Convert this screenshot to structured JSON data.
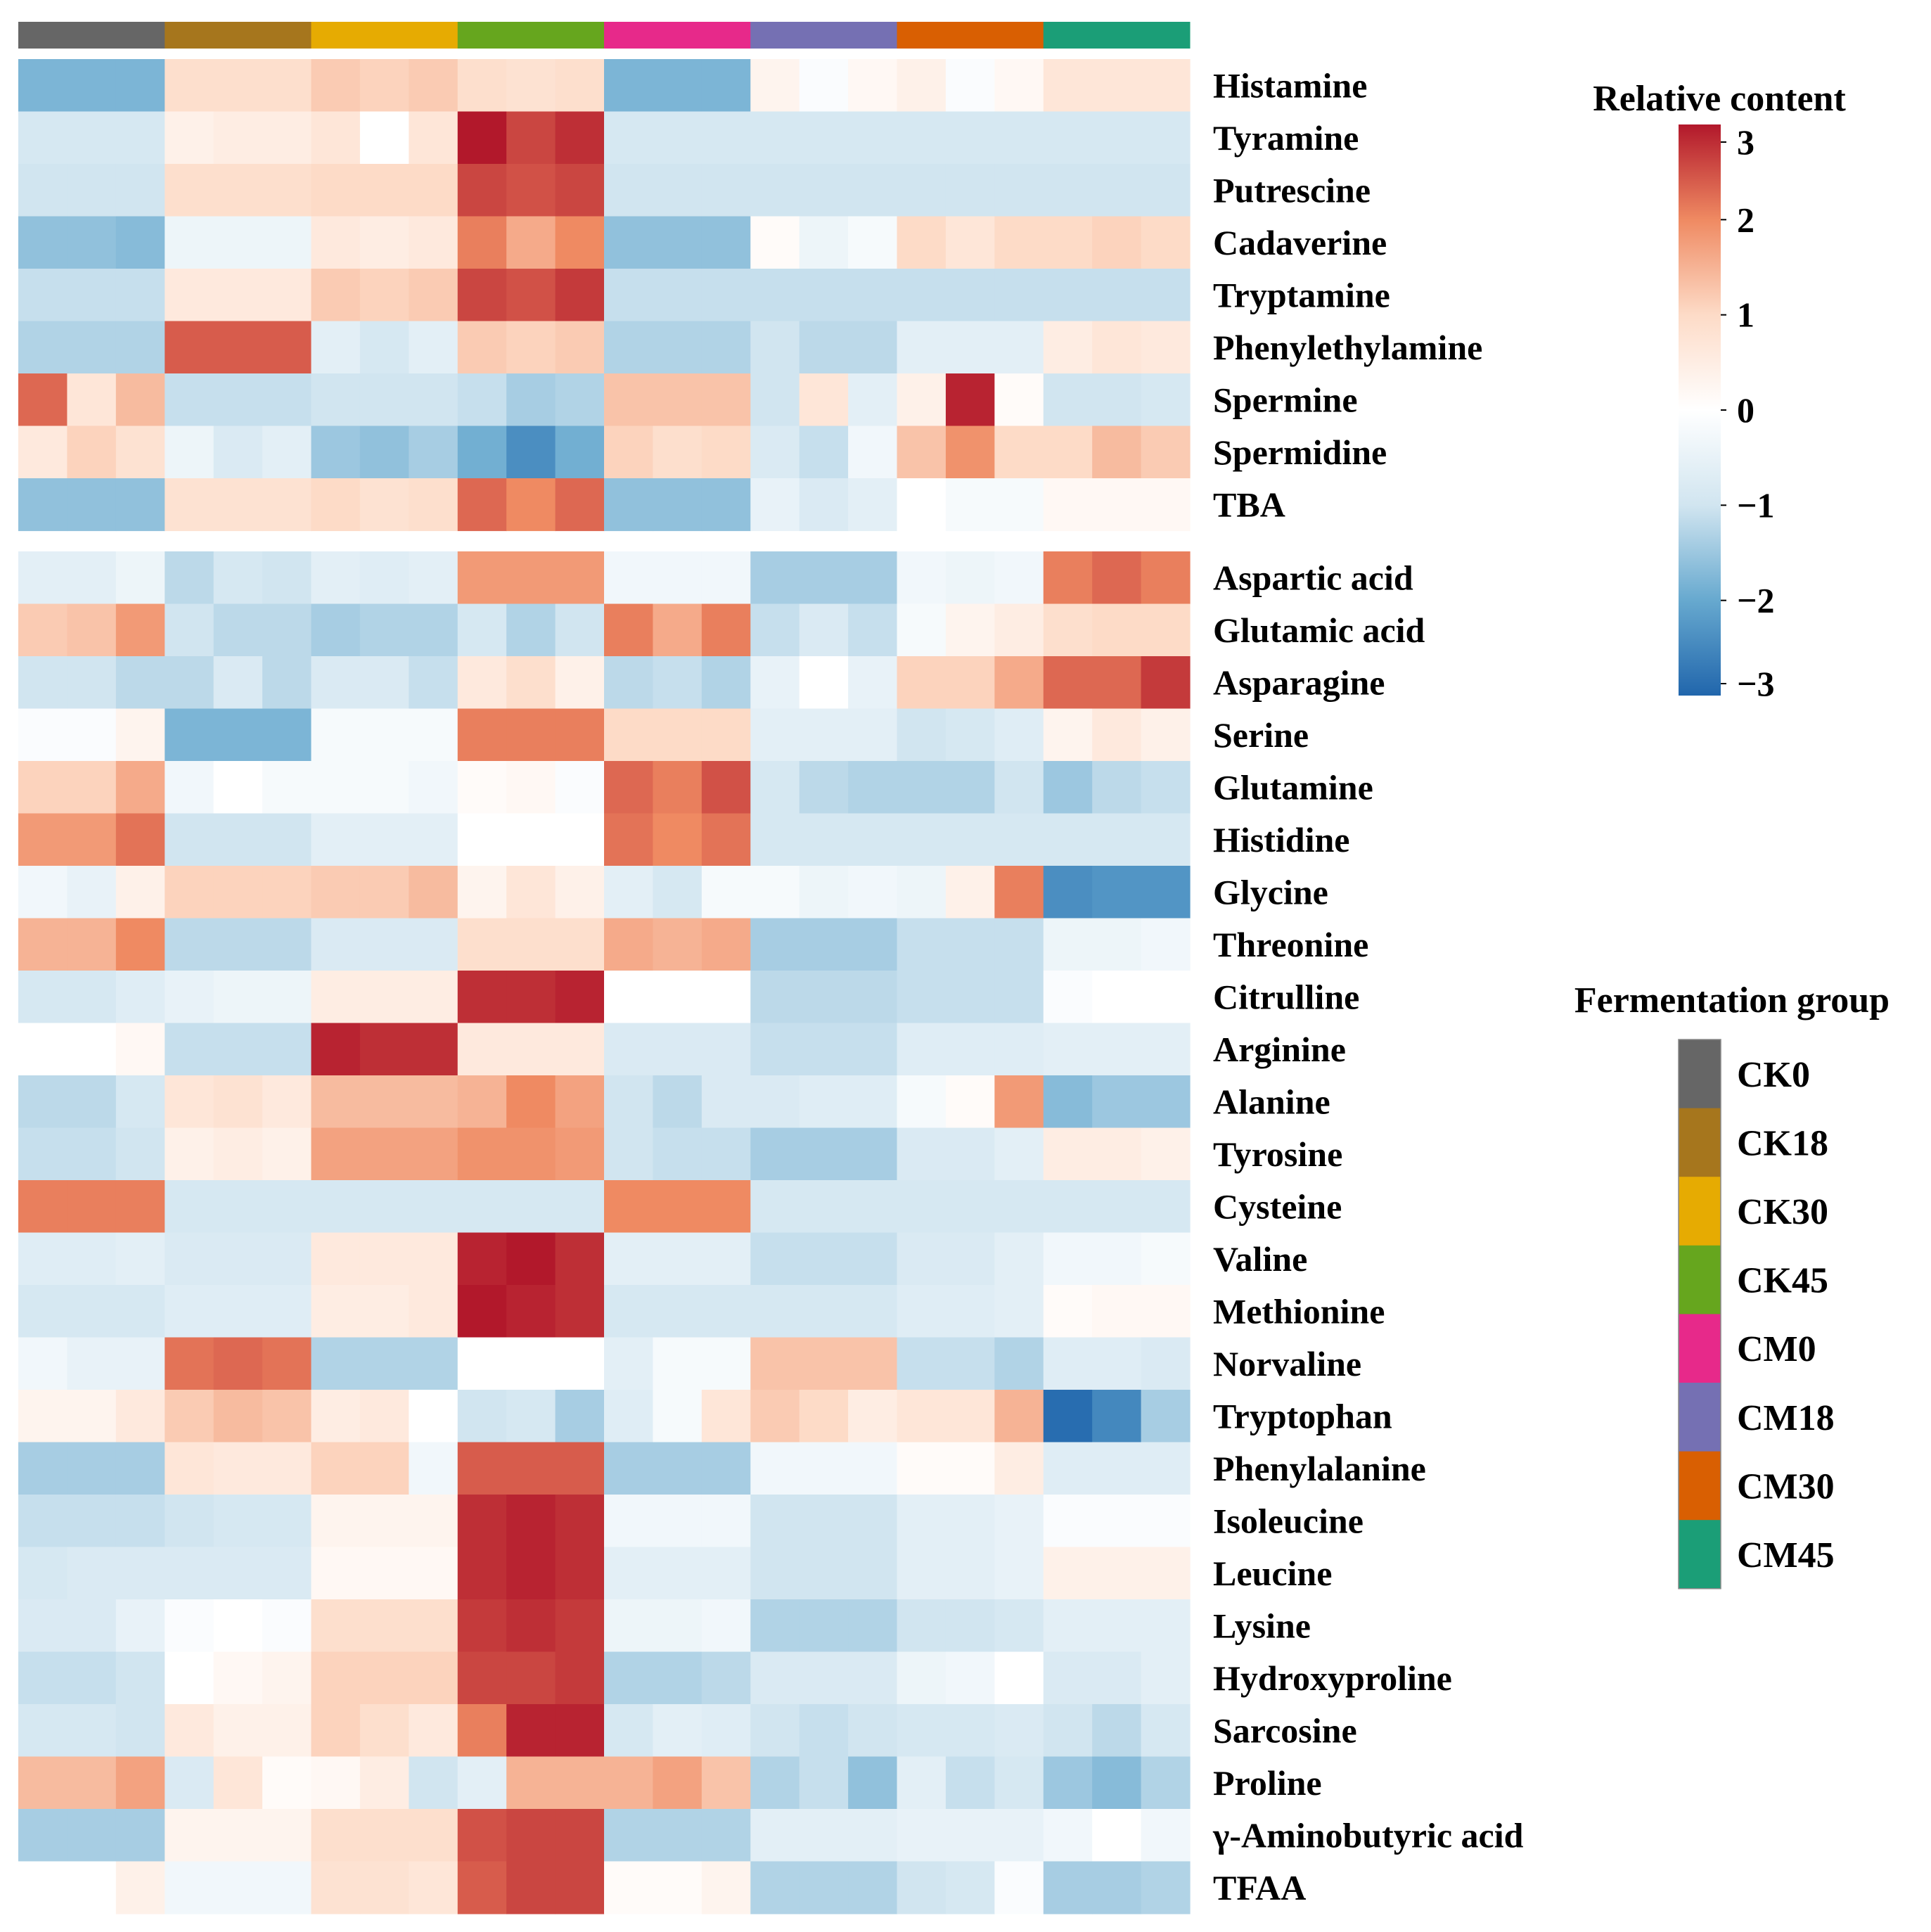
{
  "chart_data": {
    "type": "heatmap",
    "value_range": [
      -3,
      3
    ],
    "colormap": [
      "#2166ac",
      "#ffffff",
      "#b2182b"
    ],
    "group_order": [
      "CK0",
      "CK18",
      "CK30",
      "CK45",
      "CM0",
      "CM18",
      "CM30",
      "CM45"
    ],
    "group_colors": [
      "#666666",
      "#a6761d",
      "#e6ab02",
      "#66a61e",
      "#e7298a",
      "#7570b3",
      "#d95f02",
      "#1b9e77"
    ],
    "replicates_per_group": 3,
    "blocks": [
      {
        "rows": [
          "Histamine",
          "Tyramine",
          "Putrescine",
          "Cadaverine",
          "Tryptamine",
          "Phenylethylamine",
          "Spermine",
          "Spermidine",
          "TBA"
        ],
        "values": [
          [
            -1.8,
            -1.8,
            -1.8,
            0.9,
            0.9,
            0.9,
            1.2,
            1.1,
            1.2,
            0.9,
            0.8,
            0.9,
            -1.8,
            -1.8,
            -1.8,
            0.3,
            -0.1,
            0.2,
            0.4,
            -0.1,
            0.2,
            0.7,
            0.7,
            0.7
          ],
          [
            -0.9,
            -0.9,
            -0.9,
            0.4,
            0.5,
            0.5,
            0.7,
            0.0,
            0.7,
            3.0,
            2.6,
            2.8,
            -0.9,
            -0.9,
            -0.9,
            -0.9,
            -0.9,
            -0.9,
            -0.9,
            -0.9,
            -0.9,
            -0.9,
            -0.9,
            -0.9
          ],
          [
            -1.0,
            -1.0,
            -1.0,
            0.9,
            0.9,
            0.9,
            1.0,
            1.0,
            1.0,
            2.6,
            2.5,
            2.6,
            -1.0,
            -1.0,
            -1.0,
            -1.0,
            -1.0,
            -1.0,
            -1.0,
            -1.0,
            -1.0,
            -1.0,
            -1.0,
            -1.0
          ],
          [
            -1.6,
            -1.6,
            -1.7,
            -0.4,
            -0.4,
            -0.4,
            0.6,
            0.5,
            0.6,
            2.1,
            1.6,
            2.0,
            -1.6,
            -1.6,
            -1.6,
            0.1,
            -0.4,
            -0.2,
            1.0,
            0.7,
            1.0,
            1.0,
            1.1,
            1.0
          ],
          [
            -1.1,
            -1.1,
            -1.1,
            0.6,
            0.6,
            0.6,
            1.2,
            1.1,
            1.2,
            2.6,
            2.5,
            2.7,
            -1.1,
            -1.1,
            -1.1,
            -1.1,
            -1.1,
            -1.1,
            -1.1,
            -1.1,
            -1.1,
            -1.1,
            -1.1,
            -1.1
          ],
          [
            -1.3,
            -1.3,
            -1.3,
            2.4,
            2.4,
            2.4,
            -0.6,
            -0.9,
            -0.6,
            1.2,
            1.1,
            1.2,
            -1.3,
            -1.3,
            -1.3,
            -1.0,
            -1.2,
            -1.2,
            -0.6,
            -0.6,
            -0.6,
            0.5,
            0.7,
            0.6
          ],
          [
            2.3,
            0.7,
            1.4,
            -1.1,
            -1.1,
            -1.1,
            -1.0,
            -1.0,
            -1.0,
            -1.1,
            -1.4,
            -1.3,
            1.3,
            1.3,
            1.3,
            -1.0,
            0.7,
            -0.6,
            0.4,
            2.9,
            0.1,
            -1.0,
            -1.0,
            -0.9
          ],
          [
            0.6,
            1.1,
            0.8,
            -0.4,
            -0.8,
            -0.6,
            -1.5,
            -1.6,
            -1.4,
            -1.9,
            -2.4,
            -1.9,
            1.1,
            0.9,
            1.0,
            -0.8,
            -1.1,
            -0.3,
            1.3,
            1.9,
            1.0,
            1.0,
            1.4,
            1.2
          ],
          [
            -1.6,
            -1.6,
            -1.6,
            0.8,
            0.8,
            0.8,
            1.0,
            0.8,
            0.9,
            2.3,
            2.0,
            2.3,
            -1.6,
            -1.6,
            -1.6,
            -0.5,
            -0.8,
            -0.6,
            0.0,
            -0.2,
            -0.2,
            0.2,
            0.2,
            0.2
          ]
        ]
      },
      {
        "rows": [
          "Aspartic acid",
          "Glutamic acid",
          "Asparagine",
          "Serine",
          "Glutamine",
          "Histidine",
          "Glycine",
          "Threonine",
          "Citrulline",
          "Arginine",
          "Alanine",
          "Tyrosine",
          "Cysteine",
          "Valine",
          "Methionine",
          "Norvaline",
          "Tryptophan",
          "Phenylalanine",
          "Isoleucine",
          "Leucine",
          "Lysine",
          "Hydroxyproline",
          "Sarcosine",
          "Proline",
          "γ-Aminobutyric acid",
          "TFAA"
        ],
        "values": [
          [
            -0.6,
            -0.6,
            -0.4,
            -1.2,
            -0.9,
            -1.0,
            -0.6,
            -0.7,
            -0.6,
            1.8,
            1.8,
            1.8,
            -0.3,
            -0.3,
            -0.3,
            -1.4,
            -1.4,
            -1.4,
            -0.3,
            -0.4,
            -0.3,
            2.1,
            2.3,
            2.1
          ],
          [
            1.2,
            1.3,
            1.8,
            -1.0,
            -1.2,
            -1.2,
            -1.4,
            -1.3,
            -1.3,
            -0.9,
            -1.3,
            -1.0,
            2.1,
            1.6,
            2.1,
            -1.1,
            -0.8,
            -1.1,
            -0.2,
            0.3,
            0.5,
            0.9,
            1.0,
            1.0
          ],
          [
            -1.0,
            -1.0,
            -1.2,
            -1.2,
            -0.8,
            -1.2,
            -0.8,
            -0.8,
            -1.1,
            0.6,
            0.9,
            0.4,
            -1.2,
            -1.1,
            -1.3,
            -0.5,
            0.0,
            -0.5,
            1.1,
            1.1,
            1.6,
            2.3,
            2.3,
            2.7
          ],
          [
            -0.1,
            -0.1,
            0.3,
            -1.8,
            -1.8,
            -1.8,
            -0.2,
            -0.2,
            -0.2,
            2.1,
            2.1,
            2.1,
            1.0,
            1.0,
            1.0,
            -0.6,
            -0.6,
            -0.6,
            -1.0,
            -0.9,
            -0.7,
            0.3,
            0.6,
            0.4
          ],
          [
            1.1,
            1.1,
            1.6,
            -0.3,
            0.0,
            -0.2,
            -0.2,
            -0.2,
            -0.3,
            0.1,
            0.2,
            -0.1,
            2.3,
            2.1,
            2.5,
            -0.9,
            -1.2,
            -1.3,
            -1.3,
            -1.3,
            -1.0,
            -1.5,
            -1.2,
            -1.1
          ],
          [
            1.8,
            1.8,
            2.2,
            -1.0,
            -1.0,
            -1.0,
            -0.6,
            -0.6,
            -0.6,
            0.0,
            0.0,
            0.0,
            2.2,
            2.0,
            2.2,
            -0.9,
            -0.9,
            -0.9,
            -0.9,
            -0.9,
            -0.9,
            -0.9,
            -0.9,
            -0.9
          ],
          [
            -0.3,
            -0.5,
            0.4,
            1.1,
            1.1,
            1.1,
            1.2,
            1.2,
            1.4,
            0.3,
            0.7,
            0.4,
            -0.6,
            -0.9,
            -0.2,
            -0.2,
            -0.4,
            -0.3,
            -0.4,
            0.4,
            2.1,
            -2.4,
            -2.3,
            -2.3
          ],
          [
            1.5,
            1.5,
            2.0,
            -1.2,
            -1.2,
            -1.2,
            -0.8,
            -0.8,
            -0.8,
            0.9,
            0.9,
            0.9,
            1.6,
            1.5,
            1.6,
            -1.4,
            -1.4,
            -1.4,
            -1.1,
            -1.1,
            -1.1,
            -0.4,
            -0.4,
            -0.3
          ],
          [
            -0.9,
            -0.9,
            -0.7,
            -0.5,
            -0.4,
            -0.4,
            0.5,
            0.5,
            0.5,
            2.8,
            2.8,
            2.9,
            0.0,
            0.0,
            0.0,
            -1.2,
            -1.2,
            -1.2,
            -1.1,
            -1.1,
            -1.1,
            -0.1,
            0.0,
            0.0
          ],
          [
            0.0,
            0.0,
            0.2,
            -1.1,
            -1.1,
            -1.1,
            2.9,
            2.8,
            2.8,
            0.6,
            0.6,
            0.6,
            -0.8,
            -0.8,
            -0.8,
            -1.1,
            -1.1,
            -1.1,
            -0.7,
            -0.7,
            -0.7,
            -0.6,
            -0.6,
            -0.6
          ],
          [
            -1.2,
            -1.2,
            -0.9,
            0.7,
            0.8,
            0.6,
            1.4,
            1.4,
            1.4,
            1.5,
            2.0,
            1.7,
            -1.0,
            -1.2,
            -0.8,
            -0.8,
            -0.7,
            -0.7,
            -0.2,
            0.1,
            1.8,
            -1.7,
            -1.5,
            -1.5
          ],
          [
            -1.1,
            -1.1,
            -1.0,
            0.4,
            0.5,
            0.4,
            1.7,
            1.7,
            1.7,
            1.9,
            1.9,
            1.8,
            -1.0,
            -1.1,
            -1.1,
            -1.4,
            -1.4,
            -1.4,
            -0.8,
            -0.8,
            -0.6,
            0.5,
            0.5,
            0.4
          ],
          [
            2.1,
            2.1,
            2.1,
            -0.9,
            -0.9,
            -0.9,
            -0.9,
            -0.9,
            -0.9,
            -0.9,
            -0.9,
            -0.9,
            2.0,
            2.0,
            2.0,
            -0.9,
            -0.9,
            -0.9,
            -0.9,
            -0.9,
            -0.9,
            -0.9,
            -0.9,
            -0.9
          ],
          [
            -0.7,
            -0.7,
            -0.6,
            -0.8,
            -0.8,
            -0.8,
            0.6,
            0.6,
            0.6,
            2.9,
            3.0,
            2.8,
            -0.6,
            -0.6,
            -0.6,
            -1.1,
            -1.1,
            -1.1,
            -0.8,
            -0.8,
            -0.6,
            -0.3,
            -0.3,
            -0.2
          ],
          [
            -0.9,
            -0.9,
            -0.9,
            -0.7,
            -0.7,
            -0.7,
            0.5,
            0.5,
            0.6,
            3.1,
            2.9,
            2.8,
            -0.9,
            -0.9,
            -0.9,
            -0.9,
            -0.9,
            -0.9,
            -0.7,
            -0.7,
            -0.6,
            0.1,
            0.2,
            0.2
          ],
          [
            -0.3,
            -0.5,
            -0.5,
            2.2,
            2.3,
            2.2,
            -1.3,
            -1.3,
            -1.3,
            0.0,
            0.0,
            0.0,
            -0.6,
            -0.2,
            -0.2,
            1.3,
            1.3,
            1.3,
            -1.1,
            -1.1,
            -1.3,
            -0.7,
            -0.7,
            -0.8
          ],
          [
            0.3,
            0.3,
            0.6,
            1.2,
            1.4,
            1.3,
            0.5,
            0.6,
            0.0,
            -1.0,
            -0.9,
            -1.4,
            -0.7,
            -0.2,
            0.7,
            1.2,
            1.0,
            0.5,
            0.7,
            0.7,
            1.5,
            -2.9,
            -2.5,
            -1.4
          ],
          [
            -1.4,
            -1.4,
            -1.4,
            0.7,
            0.6,
            0.6,
            1.1,
            1.1,
            -0.3,
            2.4,
            2.4,
            2.4,
            -1.4,
            -1.4,
            -1.4,
            -0.3,
            -0.3,
            -0.3,
            0.1,
            0.1,
            0.5,
            -0.7,
            -0.7,
            -0.7
          ],
          [
            -1.1,
            -1.1,
            -1.1,
            -1.0,
            -0.9,
            -0.9,
            0.3,
            0.3,
            0.3,
            2.8,
            2.9,
            2.8,
            -0.3,
            -0.3,
            -0.3,
            -1.0,
            -1.0,
            -1.0,
            -0.6,
            -0.6,
            -0.5,
            -0.1,
            -0.1,
            -0.1
          ],
          [
            -0.9,
            -0.8,
            -0.8,
            -0.8,
            -0.8,
            -0.8,
            0.2,
            0.2,
            0.2,
            2.8,
            2.9,
            2.8,
            -0.6,
            -0.6,
            -0.6,
            -1.0,
            -1.0,
            -1.0,
            -0.6,
            -0.6,
            -0.5,
            0.4,
            0.4,
            0.4
          ],
          [
            -0.8,
            -0.8,
            -0.5,
            -0.1,
            0.0,
            -0.1,
            0.9,
            0.9,
            0.9,
            2.7,
            2.8,
            2.7,
            -0.4,
            -0.4,
            -0.3,
            -1.3,
            -1.3,
            -1.3,
            -1.0,
            -1.0,
            -0.9,
            -0.6,
            -0.6,
            -0.6
          ],
          [
            -1.1,
            -1.1,
            -1.0,
            0.0,
            0.2,
            0.3,
            1.1,
            1.1,
            1.1,
            2.6,
            2.6,
            2.7,
            -1.3,
            -1.3,
            -1.2,
            -0.8,
            -0.8,
            -0.8,
            -0.4,
            -0.3,
            0.0,
            -0.8,
            -0.8,
            -0.6
          ],
          [
            -0.9,
            -0.9,
            -1.0,
            0.6,
            0.4,
            0.4,
            1.1,
            0.9,
            0.6,
            2.1,
            2.9,
            2.9,
            -0.9,
            -0.6,
            -0.7,
            -1.0,
            -1.1,
            -1.0,
            -0.9,
            -0.9,
            -0.8,
            -1.0,
            -1.2,
            -0.9
          ],
          [
            1.4,
            1.4,
            1.7,
            -0.8,
            0.7,
            0.1,
            0.2,
            0.5,
            -1.0,
            -0.6,
            1.5,
            1.5,
            1.5,
            1.7,
            1.3,
            -1.3,
            -1.1,
            -1.6,
            -0.6,
            -1.1,
            -0.9,
            -1.5,
            -1.7,
            -1.3
          ],
          [
            -1.4,
            -1.4,
            -1.4,
            0.3,
            0.3,
            0.3,
            0.9,
            0.9,
            0.9,
            2.5,
            2.6,
            2.6,
            -1.3,
            -1.3,
            -1.3,
            -0.6,
            -0.6,
            -0.6,
            -0.5,
            -0.5,
            -0.5,
            -0.3,
            0.0,
            -0.3
          ],
          [
            0.0,
            0.0,
            0.4,
            -0.3,
            -0.3,
            -0.3,
            0.8,
            0.8,
            0.7,
            2.4,
            2.6,
            2.6,
            0.1,
            0.1,
            0.3,
            -1.3,
            -1.3,
            -1.3,
            -1.0,
            -0.9,
            -0.1,
            -1.4,
            -1.4,
            -1.3
          ]
        ]
      }
    ],
    "legend": {
      "title": "Relative content",
      "ticks": [
        3,
        2,
        1,
        0,
        -1,
        -2,
        -3
      ],
      "tick_labels": [
        "3",
        "2",
        "1",
        "0",
        "−1",
        "−2",
        "−3"
      ]
    },
    "annotation_legend": {
      "title": "Fermentation group",
      "items": [
        "CK0",
        "CK18",
        "CK30",
        "CK45",
        "CM0",
        "CM18",
        "CM30",
        "CM45"
      ]
    }
  }
}
